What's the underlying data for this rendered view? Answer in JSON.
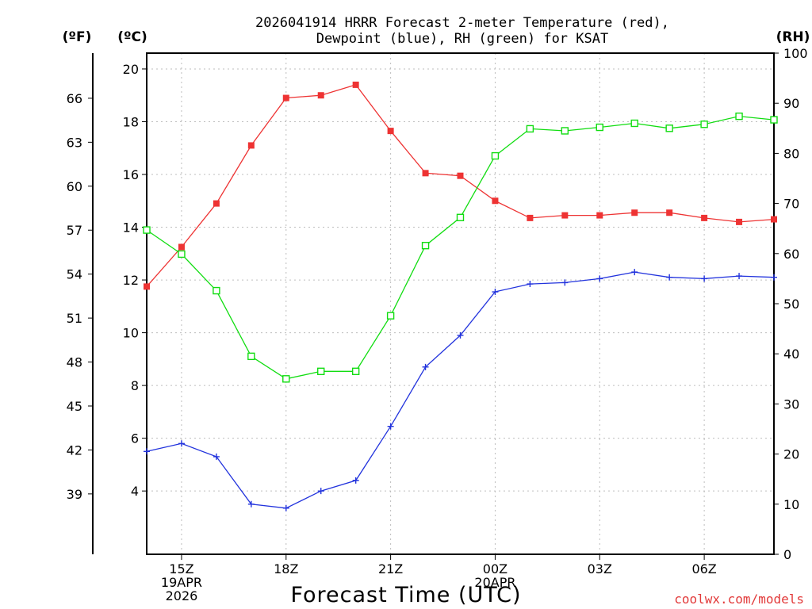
{
  "chart_data": {
    "type": "line",
    "title_line1": "2026041914 HRRR Forecast 2-meter Temperature (red),",
    "title_line2": "Dewpoint (blue), RH (green) for KSAT",
    "xlabel": "Forecast Time (UTC)",
    "credit": "coolwx.com/models",
    "unit_fahrenheit": "(ºF)",
    "unit_celsius": "(ºC)",
    "unit_rh": "(RH)",
    "x_range_hours": [
      14,
      32
    ],
    "celsius_range": [
      1.6,
      20.6
    ],
    "rh_range": [
      0,
      100
    ],
    "x_ticks": [
      {
        "hour": 15,
        "lines": [
          "15Z",
          "19APR",
          "2026"
        ]
      },
      {
        "hour": 18,
        "lines": [
          "18Z"
        ]
      },
      {
        "hour": 21,
        "lines": [
          "21Z"
        ]
      },
      {
        "hour": 24,
        "lines": [
          "00Z",
          "20APR"
        ]
      },
      {
        "hour": 27,
        "lines": [
          "03Z"
        ]
      },
      {
        "hour": 30,
        "lines": [
          "06Z"
        ]
      }
    ],
    "celsius_ticks": [
      "4",
      "6",
      "8",
      "10",
      "12",
      "14",
      "16",
      "18",
      "20"
    ],
    "fahrenheit_ticks": [
      "39",
      "42",
      "45",
      "48",
      "51",
      "54",
      "57",
      "60",
      "63",
      "66"
    ],
    "rh_ticks": [
      "0",
      "10",
      "20",
      "30",
      "40",
      "50",
      "60",
      "70",
      "80",
      "90",
      "100"
    ],
    "x_hours": [
      14,
      15,
      16,
      17,
      18,
      19,
      20,
      21,
      22,
      23,
      24,
      25,
      26,
      27,
      28,
      29,
      30,
      31,
      32
    ],
    "series": [
      {
        "name": "2-meter Temperature",
        "unit": "C",
        "color": "#ee3333",
        "marker": "filled-square",
        "values": [
          11.75,
          13.25,
          14.9,
          17.1,
          18.9,
          19.0,
          19.4,
          17.65,
          16.05,
          15.95,
          15.0,
          14.35,
          14.45,
          14.45,
          14.55,
          14.55,
          14.35,
          14.2,
          14.3
        ]
      },
      {
        "name": "Dewpoint",
        "unit": "C",
        "color": "#2233dd",
        "marker": "plus",
        "values": [
          5.5,
          5.8,
          5.3,
          3.5,
          3.35,
          4.0,
          4.4,
          6.45,
          8.7,
          9.9,
          11.55,
          11.85,
          11.9,
          12.05,
          12.3,
          12.1,
          12.05,
          12.15,
          12.1
        ]
      },
      {
        "name": "Relative Humidity",
        "unit": "%",
        "color": "#11dd11",
        "marker": "open-square",
        "values": [
          64.7,
          59.9,
          52.6,
          39.5,
          35.0,
          36.5,
          36.5,
          47.6,
          61.6,
          67.2,
          79.5,
          84.9,
          84.5,
          85.2,
          86.0,
          85.0,
          85.8,
          87.4,
          86.7
        ]
      }
    ]
  }
}
